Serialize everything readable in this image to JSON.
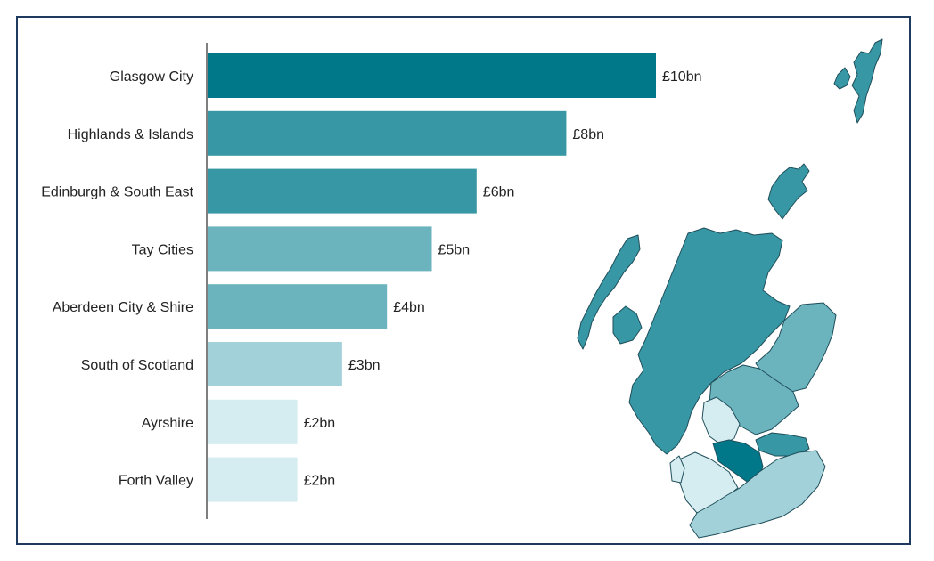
{
  "chart_data": {
    "type": "bar",
    "orientation": "horizontal",
    "title": "",
    "xlabel": "",
    "ylabel": "",
    "categories": [
      "Glasgow City",
      "Highlands & Islands",
      "Edinburgh & South East",
      "Tay Cities",
      "Aberdeen City & Shire",
      "South of Scotland",
      "Ayrshire",
      "Forth Valley"
    ],
    "values": [
      10,
      8,
      6,
      5,
      4,
      3,
      2,
      2
    ],
    "value_labels": [
      "£10bn",
      "£8bn",
      "£6bn",
      "£5bn",
      "£4bn",
      "£3bn",
      "£2bn",
      "£2bn"
    ],
    "bar_colors": [
      "#00788a",
      "#3797a4",
      "#3797a4",
      "#6bb3bd",
      "#6bb3bd",
      "#a3d1d9",
      "#d5ecf0",
      "#d5ecf0"
    ],
    "xlim": [
      0,
      10
    ],
    "grid": false,
    "legend": "none"
  },
  "map": {
    "name": "Scotland regions map",
    "colors": {
      "dark": "#00788a",
      "mid_dark": "#3797a4",
      "mid": "#6bb3bd",
      "light": "#a3d1d9",
      "lightest": "#d5ecf0",
      "outline": "#1f4e5a"
    }
  }
}
